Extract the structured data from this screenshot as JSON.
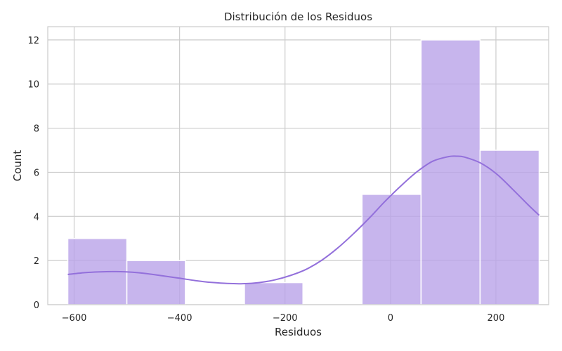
{
  "chart_data": {
    "type": "bar",
    "title": "Distribución de los Residuos",
    "xlabel": "Residuos",
    "ylabel": "Count",
    "xlim": [
      -650,
      300
    ],
    "ylim": [
      0,
      12.6
    ],
    "xticks": [
      -600,
      -400,
      -200,
      0,
      200
    ],
    "xtick_labels": [
      "−600",
      "−400",
      "−200",
      "0",
      "200"
    ],
    "yticks": [
      0,
      2,
      4,
      6,
      8,
      10,
      12
    ],
    "grid": true,
    "bar_color": "#b9a3e8",
    "bar_opacity": 0.8,
    "line_color": "#9370db",
    "bins": [
      {
        "x0": -612,
        "x1": -500,
        "count": 3
      },
      {
        "x0": -500,
        "x1": -389,
        "count": 2
      },
      {
        "x0": -389,
        "x1": -277,
        "count": 0
      },
      {
        "x0": -277,
        "x1": -166,
        "count": 1
      },
      {
        "x0": -166,
        "x1": -54,
        "count": 0
      },
      {
        "x0": -54,
        "x1": 58,
        "count": 5
      },
      {
        "x0": 58,
        "x1": 170,
        "count": 12
      },
      {
        "x0": 170,
        "x1": 282,
        "count": 7
      }
    ],
    "kde": {
      "x": [
        -612,
        -580,
        -550,
        -520,
        -490,
        -460,
        -430,
        -400,
        -370,
        -340,
        -310,
        -280,
        -250,
        -220,
        -190,
        -160,
        -130,
        -100,
        -70,
        -40,
        -10,
        20,
        50,
        80,
        110,
        125,
        140,
        170,
        200,
        230,
        260,
        282
      ],
      "y": [
        1.37,
        1.45,
        1.49,
        1.5,
        1.47,
        1.4,
        1.3,
        1.2,
        1.09,
        1.01,
        0.96,
        0.95,
        1.0,
        1.12,
        1.32,
        1.6,
        2.02,
        2.57,
        3.22,
        3.93,
        4.69,
        5.39,
        6.02,
        6.5,
        6.71,
        6.73,
        6.69,
        6.43,
        5.95,
        5.27,
        4.55,
        4.05
      ]
    }
  }
}
